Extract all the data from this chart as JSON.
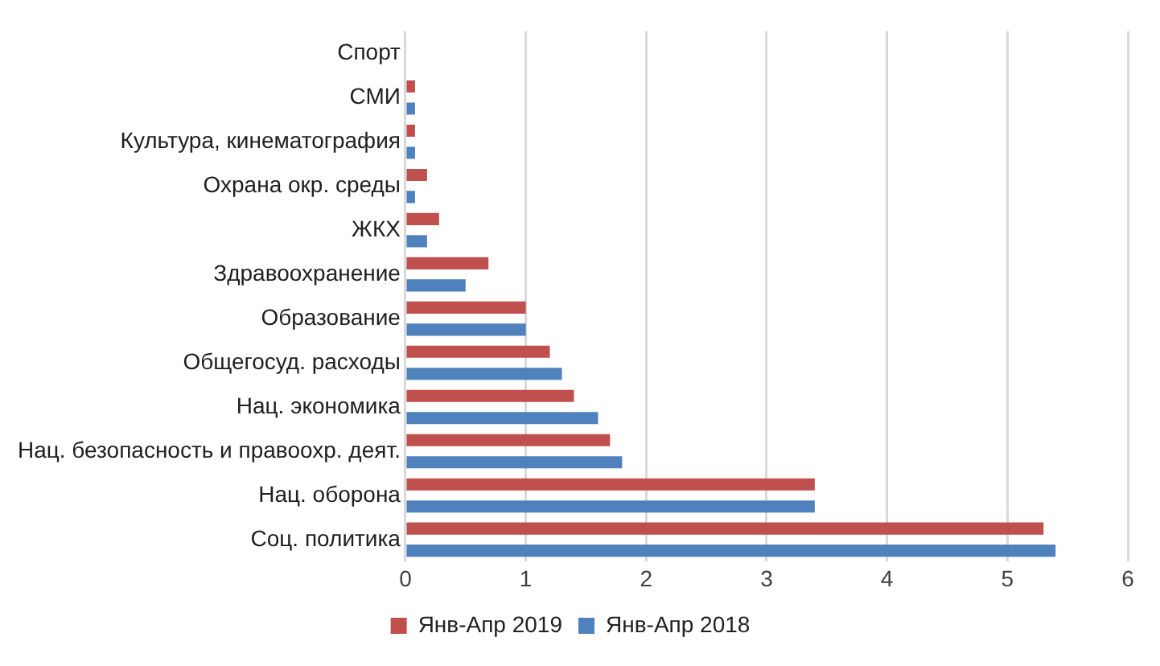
{
  "chart_data": {
    "type": "bar",
    "orientation": "horizontal",
    "categories": [
      "Спорт",
      "СМИ",
      "Культура, кинематография",
      "Охрана окр. среды",
      "ЖКХ",
      "Здравоохранение",
      "Образование",
      "Общегосуд. расходы",
      "Нац. экономика",
      "Нац. безопасность и правоохр. деят.",
      "Нац. оборона",
      "Соц. политика"
    ],
    "series": [
      {
        "name": "Янв-Апр 2019",
        "color": "#c0504d",
        "values": [
          0,
          0.08,
          0.08,
          0.18,
          0.28,
          0.69,
          1.0,
          1.2,
          1.4,
          1.7,
          3.4,
          5.3
        ]
      },
      {
        "name": "Янв-Апр 2018",
        "color": "#4f81bd",
        "values": [
          0,
          0.08,
          0.08,
          0.08,
          0.18,
          0.5,
          1.0,
          1.3,
          1.6,
          1.8,
          3.4,
          5.4
        ]
      }
    ],
    "xlim": [
      0,
      6
    ],
    "xticks": [
      0,
      1,
      2,
      3,
      4,
      5,
      6
    ],
    "grid": "x",
    "legend": "bottom"
  }
}
